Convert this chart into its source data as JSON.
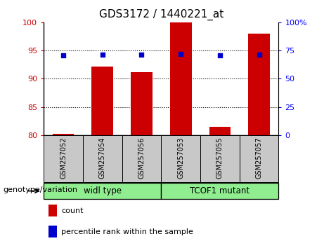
{
  "title": "GDS3172 / 1440221_at",
  "categories": [
    "GSM257052",
    "GSM257054",
    "GSM257056",
    "GSM257053",
    "GSM257055",
    "GSM257057"
  ],
  "bar_values": [
    80.3,
    92.2,
    91.2,
    100.0,
    81.5,
    98.0
  ],
  "percentile_values": [
    70.5,
    71.5,
    71.5,
    72.0,
    70.5,
    71.5
  ],
  "ylim_left": [
    80,
    100
  ],
  "ylim_right": [
    0,
    100
  ],
  "yticks_left": [
    80,
    85,
    90,
    95,
    100
  ],
  "ytick_labels_left": [
    "80",
    "85",
    "90",
    "95",
    "100"
  ],
  "yticks_right": [
    0,
    25,
    50,
    75,
    100
  ],
  "ytick_labels_right": [
    "0",
    "25",
    "50",
    "75",
    "100%"
  ],
  "hgrid_at": [
    85,
    90,
    95
  ],
  "bar_color": "#cc0000",
  "scatter_color": "#0000cc",
  "bar_width": 0.55,
  "groups_info": [
    {
      "label": "widl type",
      "start": 0,
      "end": 2
    },
    {
      "label": "TCOF1 mutant",
      "start": 3,
      "end": 5
    }
  ],
  "group_row_label": "genotype/variation",
  "legend_items": [
    {
      "label": "count",
      "color": "#cc0000"
    },
    {
      "label": "percentile rank within the sample",
      "color": "#0000cc"
    }
  ],
  "tick_area_color": "#c8c8c8",
  "group_color": "#90ee90",
  "background_color": "#ffffff"
}
